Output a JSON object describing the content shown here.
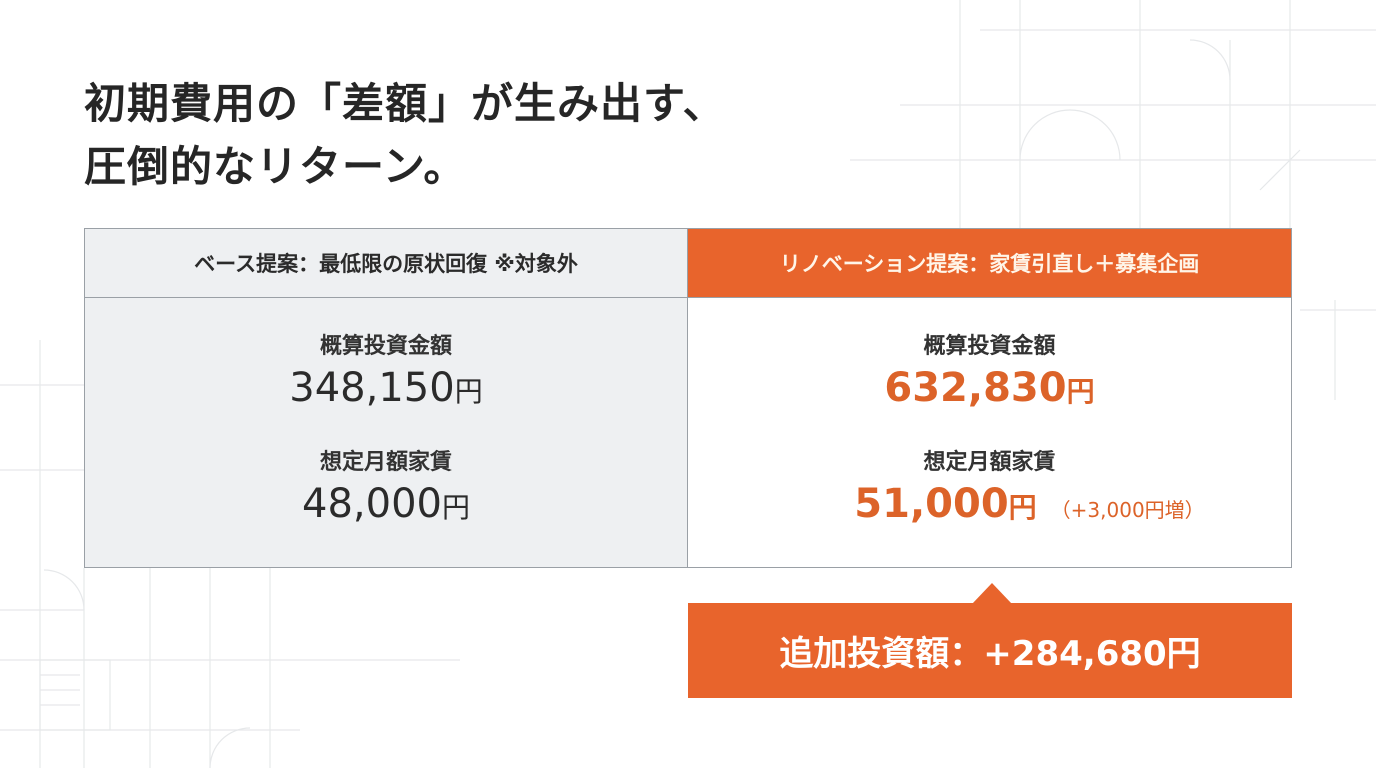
{
  "title": {
    "line1": "初期費用の「差額」が生み出す、",
    "line2": "圧倒的なリターン。"
  },
  "colors": {
    "accent": "#e8642c",
    "accent_text": "#dc6329",
    "base_bg": "#eef0f2"
  },
  "base": {
    "header": "ベース提案：最低限の原状回復 ※対象外",
    "investment_label": "概算投資金額",
    "investment_value": "348,150",
    "rent_label": "想定月額家賃",
    "rent_value": "48,000",
    "unit": "円"
  },
  "renovation": {
    "header": "リノベーション提案：家賃引直し＋募集企画",
    "investment_label": "概算投資金額",
    "investment_value": "632,830",
    "rent_label": "想定月額家賃",
    "rent_value": "51,000",
    "unit": "円",
    "rent_note": "（+3,000円増）"
  },
  "callout": {
    "text": "追加投資額：+284,680円"
  }
}
